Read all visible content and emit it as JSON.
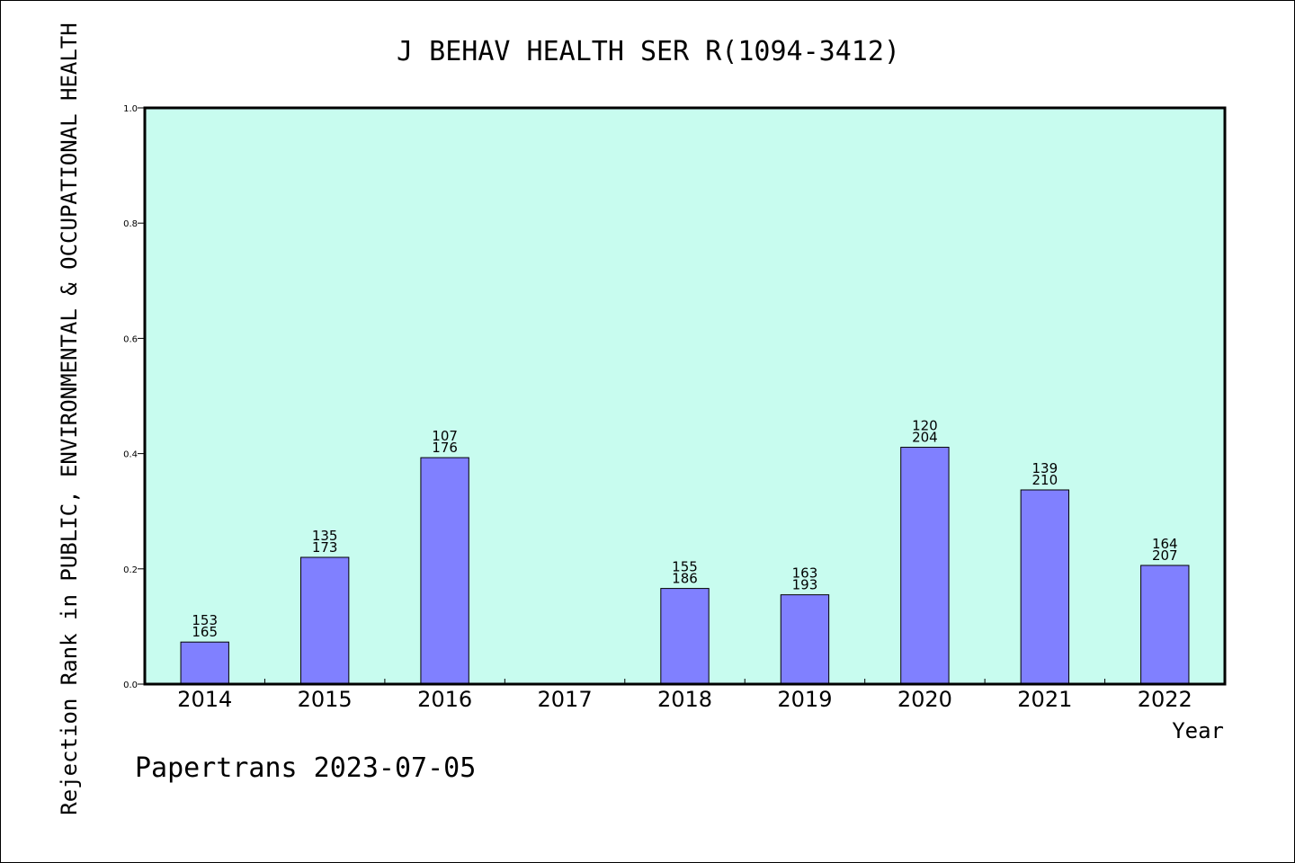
{
  "chart_data": {
    "type": "bar",
    "title": "J BEHAV HEALTH SER R(1094-3412)",
    "xlabel": "Year",
    "ylabel": "Rejection Rank in PUBLIC, ENVIRONMENTAL & OCCUPATIONAL HEALTH",
    "ylim": [
      0,
      1.0
    ],
    "yticks": [
      "0.0",
      "0.2",
      "0.4",
      "0.6",
      "0.8",
      "1.0"
    ],
    "categories": [
      "2014",
      "2015",
      "2016",
      "2017",
      "2018",
      "2019",
      "2020",
      "2021",
      "2022"
    ],
    "values": [
      0.073,
      0.22,
      0.393,
      null,
      0.166,
      0.155,
      0.411,
      0.337,
      0.206
    ],
    "label_top": [
      "153",
      "135",
      "107",
      "",
      "155",
      "163",
      "120",
      "139",
      "164"
    ],
    "label_bottom": [
      "165",
      "173",
      "176",
      "",
      "186",
      "193",
      "204",
      "210",
      "207"
    ],
    "grid": false,
    "colors": {
      "plot_background": "#c8fcef",
      "bar_fill": "#8080ff",
      "bar_stroke": "#000000"
    }
  },
  "footer": "Papertrans 2023-07-05"
}
